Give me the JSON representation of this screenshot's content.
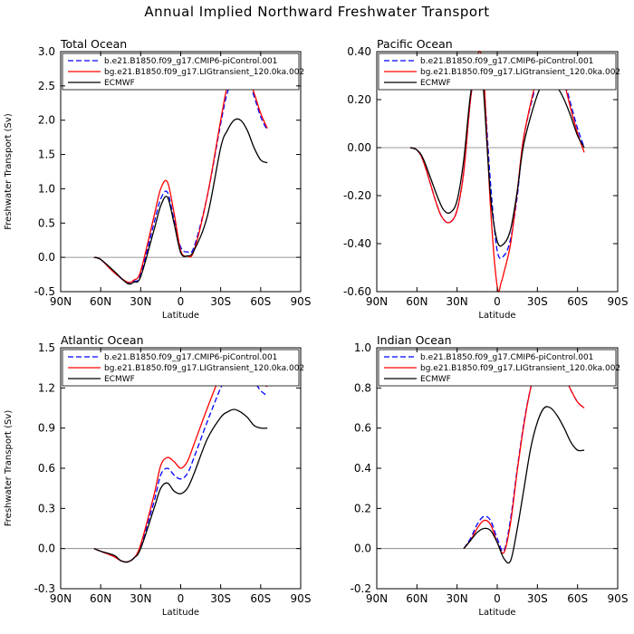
{
  "figure": {
    "title": "Annual Implied Northward Freshwater Transport"
  },
  "chart_data": [
    {
      "type": "line",
      "title": "Total Ocean",
      "xlabel": "Latitude",
      "ylabel": "Freshwater Transport (Sv)",
      "xlim": [
        90,
        -90
      ],
      "ylim": [
        -0.5,
        3.0
      ],
      "x_ticks": [
        90,
        60,
        30,
        0,
        -30,
        -60,
        -90
      ],
      "x_tick_labels": [
        "90N",
        "60N",
        "30N",
        "0",
        "30S",
        "60S",
        "90S"
      ],
      "y_ticks": [
        -0.5,
        0,
        0.5,
        1.0,
        1.5,
        2.0,
        2.5,
        3.0
      ],
      "y_tick_labels": [
        "-0.5",
        "0.0",
        "0.5",
        "1.0",
        "1.5",
        "2.0",
        "2.5",
        "3.0"
      ],
      "zero_line": true,
      "legend": "top-inside",
      "series": [
        {
          "name": "b.e21.B1850.f09_g17.CMIP6-piControl.001",
          "color": "#0000ff",
          "dash": "dashed",
          "x": [
            65,
            60,
            50,
            40,
            35,
            30,
            20,
            15,
            10,
            5,
            0,
            -5,
            -10,
            -20,
            -30,
            -35,
            -40,
            -45,
            -50,
            -55,
            -60,
            -65
          ],
          "y": [
            0,
            -0.03,
            -0.22,
            -0.37,
            -0.35,
            -0.25,
            0.5,
            0.85,
            0.95,
            0.55,
            0.15,
            0.08,
            0.15,
            0.9,
            1.95,
            2.4,
            2.6,
            2.68,
            2.6,
            2.35,
            2.05,
            1.85
          ]
        },
        {
          "name": "bg.e21.B1850.f09_g17.LIGtransient_120.0ka.002",
          "color": "#ff0000",
          "dash": "solid",
          "x": [
            65,
            60,
            50,
            40,
            35,
            30,
            20,
            15,
            10,
            5,
            0,
            -5,
            -10,
            -20,
            -30,
            -35,
            -40,
            -45,
            -50,
            -55,
            -60,
            -65
          ],
          "y": [
            0,
            -0.03,
            -0.22,
            -0.36,
            -0.33,
            -0.2,
            0.6,
            1.0,
            1.1,
            0.65,
            0.1,
            0.02,
            0.1,
            0.9,
            2.0,
            2.5,
            2.72,
            2.78,
            2.65,
            2.4,
            2.1,
            1.88
          ]
        },
        {
          "name": "ECMWF",
          "color": "#000000",
          "dash": "solid",
          "x": [
            65,
            60,
            50,
            40,
            35,
            30,
            20,
            15,
            10,
            5,
            0,
            -5,
            -10,
            -20,
            -30,
            -35,
            -40,
            -45,
            -50,
            -55,
            -60,
            -65
          ],
          "y": [
            0,
            -0.03,
            -0.2,
            -0.38,
            -0.36,
            -0.28,
            0.4,
            0.75,
            0.88,
            0.5,
            0.07,
            0.02,
            0.1,
            0.6,
            1.6,
            1.85,
            2.0,
            2.0,
            1.85,
            1.6,
            1.42,
            1.38
          ]
        }
      ]
    },
    {
      "type": "line",
      "title": "Pacific Ocean",
      "xlabel": "Latitude",
      "ylabel": "",
      "xlim": [
        90,
        -90
      ],
      "ylim": [
        -0.6,
        0.4
      ],
      "x_ticks": [
        90,
        60,
        30,
        0,
        -30,
        -60,
        -90
      ],
      "x_tick_labels": [
        "90N",
        "60N",
        "30N",
        "0",
        "30S",
        "60S",
        "90S"
      ],
      "y_ticks": [
        -0.6,
        -0.4,
        -0.2,
        0,
        0.2,
        0.4
      ],
      "y_tick_labels": [
        "-0.60",
        "-0.40",
        "-0.20",
        "0.00",
        "0.20",
        "0.40"
      ],
      "zero_line": true,
      "legend": "top-inside",
      "series": [
        {
          "name": "b.e21.B1850.f09_g17.CMIP6-piControl.001",
          "color": "#0000ff",
          "dash": "dashed",
          "x": [
            65,
            60,
            55,
            45,
            40,
            35,
            30,
            25,
            20,
            15,
            12,
            10,
            5,
            0,
            -5,
            -10,
            -15,
            -20,
            -30,
            -35,
            -40,
            -45,
            -50,
            -55,
            -60,
            -65
          ],
          "y": [
            0,
            -0.01,
            -0.06,
            -0.24,
            -0.3,
            -0.31,
            -0.26,
            -0.1,
            0.2,
            0.37,
            0.38,
            0.28,
            -0.15,
            -0.43,
            -0.45,
            -0.38,
            -0.2,
            0.05,
            0.28,
            0.34,
            0.36,
            0.35,
            0.28,
            0.18,
            0.08,
            0.0
          ]
        },
        {
          "name": "bg.e21.B1850.f09_g17.LIGtransient_120.0ka.002",
          "color": "#ff0000",
          "dash": "solid",
          "x": [
            65,
            60,
            55,
            45,
            40,
            35,
            30,
            25,
            20,
            15,
            12,
            10,
            5,
            0,
            -3,
            -5,
            -10,
            -15,
            -20,
            -30,
            -35,
            -40,
            -45,
            -50,
            -55,
            -60,
            -65
          ],
          "y": [
            0,
            -0.01,
            -0.06,
            -0.24,
            -0.3,
            -0.31,
            -0.26,
            -0.1,
            0.2,
            0.38,
            0.39,
            0.3,
            -0.25,
            -0.58,
            -0.56,
            -0.52,
            -0.4,
            -0.18,
            0.05,
            0.3,
            0.36,
            0.37,
            0.35,
            0.27,
            0.16,
            0.06,
            -0.02
          ]
        },
        {
          "name": "ECMWF",
          "color": "#000000",
          "dash": "solid",
          "x": [
            65,
            60,
            55,
            45,
            40,
            35,
            30,
            25,
            20,
            15,
            12,
            10,
            5,
            0,
            -5,
            -10,
            -15,
            -20,
            -30,
            -35,
            -40,
            -45,
            -50,
            -55,
            -60,
            -65
          ],
          "y": [
            0,
            -0.01,
            -0.05,
            -0.2,
            -0.26,
            -0.27,
            -0.22,
            -0.05,
            0.22,
            0.35,
            0.34,
            0.22,
            -0.2,
            -0.39,
            -0.4,
            -0.34,
            -0.18,
            0.02,
            0.22,
            0.26,
            0.27,
            0.25,
            0.2,
            0.13,
            0.05,
            0.0
          ]
        }
      ]
    },
    {
      "type": "line",
      "title": "Atlantic Ocean",
      "xlabel": "Latitude",
      "ylabel": "Freshwater Transport (Sv)",
      "xlim": [
        90,
        -90
      ],
      "ylim": [
        -0.3,
        1.5
      ],
      "x_ticks": [
        90,
        60,
        30,
        0,
        -30,
        -60,
        -90
      ],
      "x_tick_labels": [
        "90N",
        "60N",
        "30N",
        "0",
        "30S",
        "60S",
        "90S"
      ],
      "y_ticks": [
        -0.3,
        0,
        0.3,
        0.6,
        0.9,
        1.2,
        1.5
      ],
      "y_tick_labels": [
        "-0.3",
        "0.0",
        "0.3",
        "0.6",
        "0.9",
        "1.2",
        "1.5"
      ],
      "zero_line": true,
      "legend": "top-inside",
      "series": [
        {
          "name": "b.e21.B1850.f09_g17.CMIP6-piControl.001",
          "color": "#0000ff",
          "dash": "dashed",
          "x": [
            65,
            60,
            50,
            45,
            40,
            35,
            30,
            20,
            15,
            10,
            5,
            0,
            -5,
            -10,
            -20,
            -30,
            -35,
            -40,
            -45,
            -50,
            -55,
            -60,
            -65
          ],
          "y": [
            0,
            -0.02,
            -0.06,
            -0.09,
            -0.1,
            -0.07,
            0.02,
            0.35,
            0.55,
            0.6,
            0.55,
            0.52,
            0.56,
            0.68,
            0.95,
            1.2,
            1.28,
            1.32,
            1.33,
            1.3,
            1.25,
            1.18,
            1.14
          ]
        },
        {
          "name": "bg.e21.B1850.f09_g17.LIGtransient_120.0ka.002",
          "color": "#ff0000",
          "dash": "solid",
          "x": [
            65,
            60,
            50,
            45,
            40,
            35,
            30,
            20,
            15,
            10,
            5,
            0,
            -5,
            -10,
            -20,
            -30,
            -35,
            -40,
            -45,
            -50,
            -55,
            -60,
            -65
          ],
          "y": [
            0,
            -0.02,
            -0.06,
            -0.09,
            -0.1,
            -0.07,
            0.03,
            0.4,
            0.62,
            0.68,
            0.65,
            0.6,
            0.65,
            0.78,
            1.05,
            1.3,
            1.37,
            1.4,
            1.38,
            1.33,
            1.28,
            1.24,
            1.21
          ]
        },
        {
          "name": "ECMWF",
          "color": "#000000",
          "dash": "solid",
          "x": [
            65,
            60,
            50,
            45,
            40,
            35,
            30,
            20,
            15,
            10,
            5,
            0,
            -5,
            -10,
            -20,
            -30,
            -35,
            -40,
            -45,
            -50,
            -55,
            -60,
            -65
          ],
          "y": [
            0,
            -0.02,
            -0.05,
            -0.09,
            -0.1,
            -0.07,
            0.0,
            0.3,
            0.45,
            0.49,
            0.43,
            0.41,
            0.45,
            0.56,
            0.82,
            0.98,
            1.02,
            1.04,
            1.02,
            0.98,
            0.92,
            0.9,
            0.9
          ]
        }
      ]
    },
    {
      "type": "line",
      "title": "Indian Ocean",
      "xlabel": "Latitude",
      "ylabel": "",
      "xlim": [
        90,
        -90
      ],
      "ylim": [
        -0.2,
        1.0
      ],
      "x_ticks": [
        90,
        60,
        30,
        0,
        -30,
        -60,
        -90
      ],
      "x_tick_labels": [
        "90N",
        "60N",
        "30N",
        "0",
        "30S",
        "60S",
        "90S"
      ],
      "y_ticks": [
        -0.2,
        0,
        0.2,
        0.4,
        0.6,
        0.8,
        1.0
      ],
      "y_tick_labels": [
        "-0.2",
        "0.0",
        "0.2",
        "0.4",
        "0.6",
        "0.8",
        "1.0"
      ],
      "zero_line": true,
      "legend": "top-inside",
      "series": [
        {
          "name": "b.e21.B1850.f09_g17.CMIP6-piControl.001",
          "color": "#0000ff",
          "dash": "dashed",
          "x": [
            25,
            20,
            15,
            10,
            5,
            0,
            -5,
            -10,
            -15,
            -20,
            -25,
            -30,
            -35,
            -40,
            -45,
            -50,
            -55,
            -60,
            -65
          ],
          "y": [
            0,
            0.05,
            0.12,
            0.16,
            0.14,
            0.05,
            -0.01,
            0.15,
            0.4,
            0.63,
            0.8,
            0.9,
            0.95,
            0.96,
            0.93,
            0.86,
            0.79,
            0.73,
            0.7
          ]
        },
        {
          "name": "bg.e21.B1850.f09_g17.LIGtransient_120.0ka.002",
          "color": "#ff0000",
          "dash": "solid",
          "x": [
            25,
            20,
            15,
            10,
            5,
            0,
            -5,
            -10,
            -15,
            -20,
            -25,
            -30,
            -35,
            -40,
            -45,
            -50,
            -55,
            -60,
            -65
          ],
          "y": [
            0,
            0.04,
            0.1,
            0.14,
            0.12,
            0.03,
            -0.02,
            0.13,
            0.39,
            0.62,
            0.8,
            0.9,
            0.96,
            0.97,
            0.93,
            0.86,
            0.79,
            0.73,
            0.7
          ]
        },
        {
          "name": "ECMWF",
          "color": "#000000",
          "dash": "solid",
          "x": [
            25,
            20,
            15,
            10,
            5,
            0,
            -5,
            -10,
            -15,
            -20,
            -25,
            -30,
            -35,
            -40,
            -45,
            -50,
            -55,
            -60,
            -65
          ],
          "y": [
            0,
            0.04,
            0.08,
            0.1,
            0.09,
            0.03,
            -0.05,
            -0.06,
            0.1,
            0.3,
            0.5,
            0.63,
            0.7,
            0.7,
            0.66,
            0.6,
            0.53,
            0.49,
            0.49
          ]
        }
      ]
    }
  ]
}
